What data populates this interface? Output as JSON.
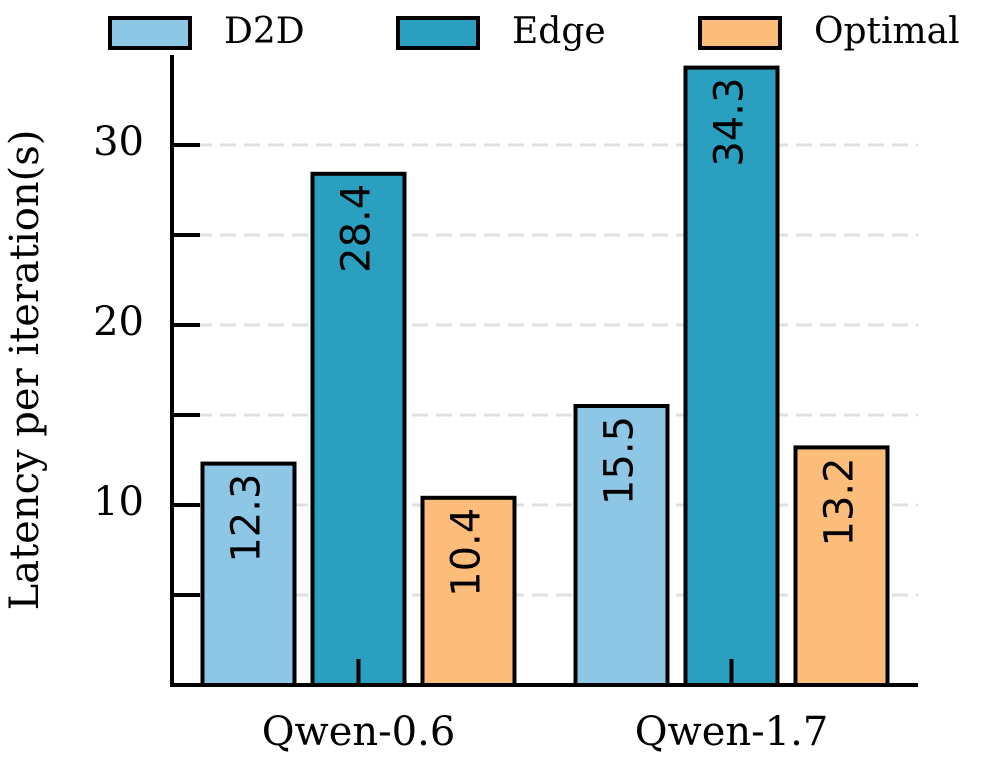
{
  "chart_data": {
    "type": "bar",
    "y_label": "Latency per iteration(s)",
    "categories": [
      "Qwen-0.6",
      "Qwen-1.7"
    ],
    "series": [
      {
        "name": "D2D",
        "color": "#8ec6e6",
        "values": [
          12.3,
          15.5
        ]
      },
      {
        "name": "Edge",
        "color": "#2a9fc0",
        "values": [
          28.4,
          34.3
        ]
      },
      {
        "name": "Optimal",
        "color": "#fdbd7a",
        "values": [
          10.4,
          13.2
        ]
      }
    ],
    "ylim": [
      0,
      35
    ],
    "yticks": [
      10,
      20,
      30
    ],
    "yticks_minor": [
      5,
      15,
      25
    ],
    "grid": true,
    "legend": "top"
  }
}
